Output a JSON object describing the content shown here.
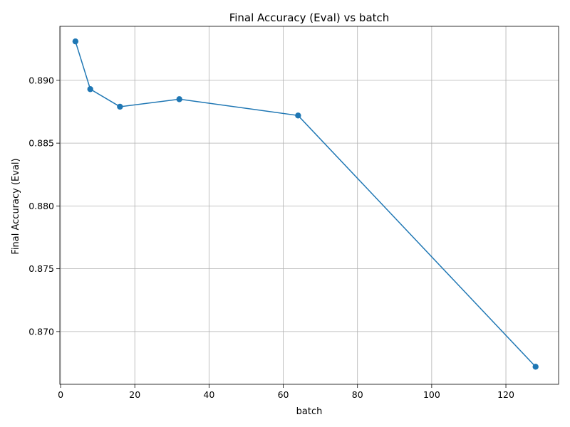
{
  "chart_data": {
    "type": "line",
    "title": "Final Accuracy (Eval) vs batch",
    "xlabel": "batch",
    "ylabel": "Final Accuracy (Eval)",
    "xlim": [
      -0.2,
      134.2
    ],
    "ylim": [
      0.8658,
      0.8943
    ],
    "grid": true,
    "legend": "none",
    "line_color": "#1f77b4",
    "grid_color": "#b0b0b0",
    "x_ticks": [
      0,
      20,
      40,
      60,
      80,
      100,
      120
    ],
    "y_ticks": [
      0.87,
      0.875,
      0.88,
      0.885,
      0.89
    ],
    "x_tick_labels": [
      "0",
      "20",
      "40",
      "60",
      "80",
      "100",
      "120"
    ],
    "y_tick_labels": [
      "0.870",
      "0.875",
      "0.880",
      "0.885",
      "0.890"
    ],
    "series": [
      {
        "x": [
          4,
          8,
          16,
          32,
          64,
          128
        ],
        "y": [
          0.8931,
          0.8893,
          0.8879,
          0.8885,
          0.8872,
          0.8672
        ],
        "marker": "circle"
      }
    ]
  }
}
